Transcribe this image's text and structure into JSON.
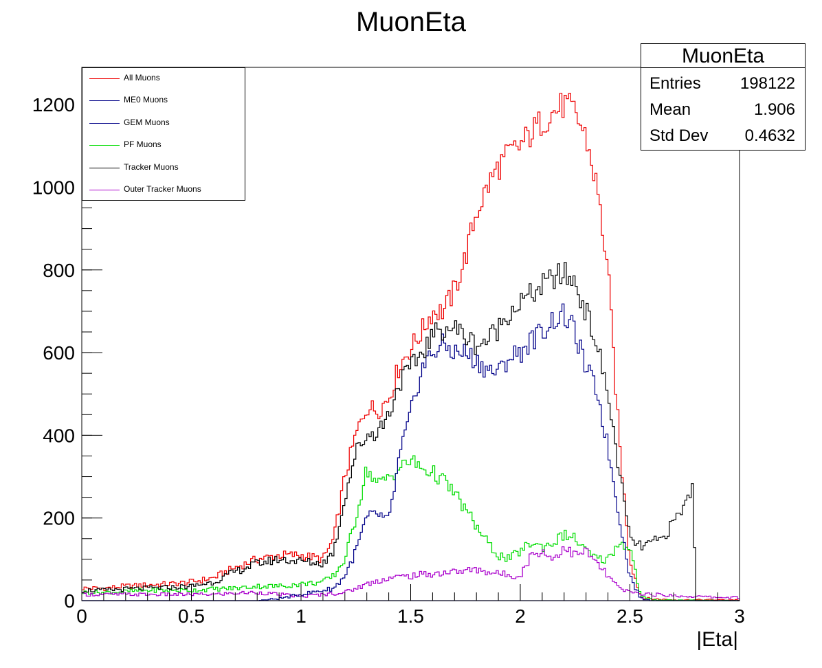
{
  "chart_data": {
    "type": "line",
    "title": "MuonEta",
    "xlabel": "|Eta|",
    "ylabel": "",
    "xlim": [
      0,
      3
    ],
    "ylim": [
      0,
      1290
    ],
    "xticks": [
      "0",
      "0.5",
      "1",
      "1.5",
      "2",
      "2.5",
      "3"
    ],
    "yticks": [
      "0",
      "200",
      "400",
      "600",
      "800",
      "1000",
      "1200"
    ],
    "legend_position": "top-left",
    "series": [
      {
        "name": "All Muons",
        "color": "#ee0000",
        "x": [
          0,
          0.1,
          0.2,
          0.3,
          0.4,
          0.5,
          0.6,
          0.7,
          0.8,
          0.9,
          1.0,
          1.1,
          1.15,
          1.2,
          1.25,
          1.3,
          1.35,
          1.4,
          1.45,
          1.5,
          1.55,
          1.6,
          1.65,
          1.7,
          1.75,
          1.8,
          1.85,
          1.9,
          1.95,
          2.0,
          2.05,
          2.1,
          2.15,
          2.2,
          2.25,
          2.3,
          2.35,
          2.4,
          2.45,
          2.5,
          2.55,
          2.6,
          2.65,
          2.7,
          2.75,
          2.8,
          2.85,
          2.9,
          2.95,
          3.0
        ],
        "y": [
          30,
          30,
          35,
          38,
          40,
          45,
          55,
          80,
          100,
          110,
          110,
          100,
          150,
          300,
          400,
          470,
          460,
          490,
          570,
          610,
          650,
          700,
          700,
          750,
          830,
          940,
          1000,
          1050,
          1080,
          1100,
          1130,
          1160,
          1180,
          1200,
          1180,
          1120,
          1000,
          800,
          400,
          100,
          8,
          4,
          3,
          2,
          2,
          2,
          2,
          2,
          2,
          2
        ]
      },
      {
        "name": "ME0 Muons",
        "color": "#000088",
        "x": [
          0,
          2.8,
          2.9,
          3.0
        ],
        "y": [
          0,
          0,
          0,
          0
        ]
      },
      {
        "name": "GEM Muons",
        "color": "#000088",
        "x": [
          0,
          0.8,
          0.9,
          1.0,
          1.1,
          1.15,
          1.2,
          1.25,
          1.3,
          1.35,
          1.4,
          1.45,
          1.5,
          1.55,
          1.6,
          1.65,
          1.7,
          1.75,
          1.8,
          1.85,
          1.9,
          1.95,
          2.0,
          2.05,
          2.1,
          2.15,
          2.2,
          2.25,
          2.3,
          2.35,
          2.4,
          2.45,
          2.5,
          2.55,
          2.6,
          3.0
        ],
        "y": [
          0,
          0,
          5,
          15,
          25,
          30,
          60,
          120,
          200,
          210,
          190,
          350,
          450,
          560,
          600,
          620,
          600,
          600,
          580,
          560,
          550,
          590,
          600,
          630,
          650,
          680,
          690,
          650,
          560,
          510,
          370,
          210,
          60,
          5,
          0,
          0
        ]
      },
      {
        "name": "PF Muons",
        "color": "#00dd00",
        "x": [
          0,
          0.1,
          0.2,
          0.3,
          0.4,
          0.5,
          0.6,
          0.7,
          0.8,
          0.9,
          1.0,
          1.1,
          1.15,
          1.2,
          1.25,
          1.3,
          1.35,
          1.4,
          1.45,
          1.5,
          1.55,
          1.6,
          1.65,
          1.7,
          1.75,
          1.8,
          1.85,
          1.9,
          1.95,
          2.0,
          2.05,
          2.1,
          2.15,
          2.2,
          2.25,
          2.3,
          2.35,
          2.4,
          2.45,
          2.5,
          2.55,
          2.6,
          3.0
        ],
        "y": [
          20,
          20,
          22,
          25,
          25,
          25,
          28,
          30,
          35,
          35,
          40,
          45,
          60,
          100,
          200,
          320,
          280,
          300,
          320,
          340,
          320,
          310,
          290,
          260,
          220,
          180,
          140,
          110,
          100,
          120,
          140,
          130,
          140,
          160,
          150,
          120,
          100,
          100,
          140,
          130,
          10,
          2,
          0
        ]
      },
      {
        "name": "Tracker Muons",
        "color": "#000000",
        "x": [
          0,
          0.1,
          0.2,
          0.3,
          0.4,
          0.5,
          0.6,
          0.7,
          0.8,
          0.9,
          1.0,
          1.1,
          1.15,
          1.2,
          1.25,
          1.3,
          1.35,
          1.4,
          1.45,
          1.5,
          1.55,
          1.6,
          1.65,
          1.7,
          1.75,
          1.8,
          1.85,
          1.9,
          1.95,
          2.0,
          2.05,
          2.1,
          2.15,
          2.2,
          2.25,
          2.3,
          2.35,
          2.4,
          2.45,
          2.5,
          2.55,
          2.6,
          2.65,
          2.7,
          2.75,
          2.79,
          2.8,
          2.85,
          3.0
        ],
        "y": [
          25,
          25,
          28,
          30,
          32,
          35,
          45,
          70,
          90,
          100,
          95,
          90,
          120,
          250,
          360,
          400,
          410,
          450,
          530,
          560,
          600,
          640,
          660,
          660,
          640,
          620,
          630,
          660,
          700,
          720,
          740,
          760,
          780,
          790,
          770,
          700,
          620,
          500,
          320,
          150,
          130,
          140,
          150,
          190,
          230,
          280,
          0,
          0,
          0
        ]
      },
      {
        "name": "Outer Tracker Muons",
        "color": "#aa00cc",
        "x": [
          0,
          0.1,
          0.2,
          0.3,
          0.4,
          0.5,
          0.6,
          0.7,
          0.8,
          0.9,
          1.0,
          1.1,
          1.2,
          1.3,
          1.4,
          1.5,
          1.6,
          1.7,
          1.8,
          1.9,
          2.0,
          2.05,
          2.1,
          2.15,
          2.2,
          2.25,
          2.3,
          2.35,
          2.4,
          2.45,
          2.5,
          2.6,
          2.7,
          2.8,
          2.9,
          3.0
        ],
        "y": [
          15,
          15,
          15,
          15,
          15,
          15,
          15,
          18,
          20,
          15,
          10,
          15,
          20,
          40,
          55,
          60,
          65,
          70,
          75,
          65,
          60,
          110,
          120,
          100,
          130,
          110,
          120,
          90,
          60,
          30,
          20,
          15,
          12,
          10,
          8,
          8
        ]
      }
    ]
  },
  "legend": {
    "items": [
      {
        "label": "All Muons",
        "color": "#ee0000"
      },
      {
        "label": "ME0 Muons",
        "color": "#000088"
      },
      {
        "label": "GEM Muons",
        "color": "#000088"
      },
      {
        "label": "PF Muons",
        "color": "#00dd00"
      },
      {
        "label": "Tracker Muons",
        "color": "#000000"
      },
      {
        "label": "Outer Tracker Muons",
        "color": "#aa00cc"
      }
    ]
  },
  "stats": {
    "title": "MuonEta",
    "rows": [
      {
        "name": "Entries",
        "value": "198122"
      },
      {
        "name": "Mean",
        "value": "1.906"
      },
      {
        "name": "Std Dev",
        "value": "0.4632"
      }
    ]
  }
}
